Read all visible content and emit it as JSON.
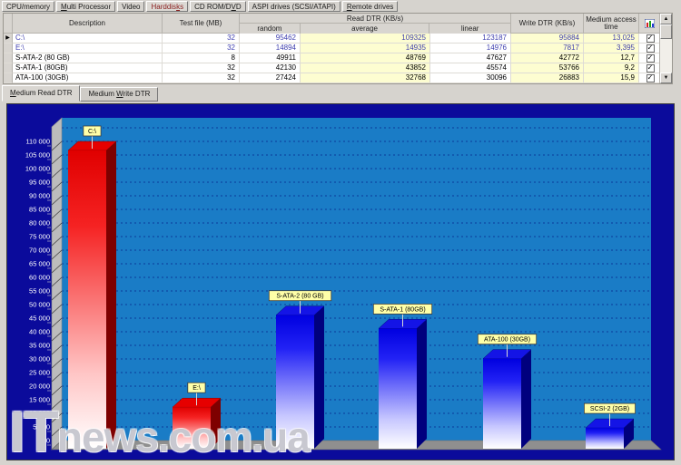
{
  "tabs": {
    "items": [
      {
        "pre": "CPU/memory",
        "u": "",
        "post": "",
        "selected": false
      },
      {
        "pre": "",
        "u": "M",
        "post": "ulti Processor",
        "selected": false
      },
      {
        "pre": "Video",
        "u": "",
        "post": "",
        "selected": false
      },
      {
        "pre": "Harddis",
        "u": "k",
        "post": "s",
        "selected": true
      },
      {
        "pre": "CD ROM/D",
        "u": "V",
        "post": "D",
        "selected": false
      },
      {
        "pre": "ASPI drives (SCSI/ATAPI)",
        "u": "",
        "post": "",
        "selected": false
      },
      {
        "pre": "",
        "u": "R",
        "post": "emote drives",
        "selected": false
      }
    ]
  },
  "table": {
    "headers": {
      "description": "Description",
      "test_file": "Test file (MB)",
      "read_group": "Read DTR (KB/s)",
      "random": "random",
      "average": "average",
      "linear": "linear",
      "write": "Write DTR (KB/s)",
      "access_line1": "Medium access",
      "access_line2": "time"
    },
    "rows": [
      {
        "description": "C:\\",
        "test_file": "32",
        "random": "95462",
        "average": "109325",
        "linear": "123187",
        "write": "95884",
        "access": "13,025",
        "checked": true,
        "style": "blue",
        "indicator": true
      },
      {
        "description": "E:\\",
        "test_file": "32",
        "random": "14894",
        "average": "14935",
        "linear": "14976",
        "write": "7817",
        "access": "3,395",
        "checked": true,
        "style": "blue",
        "indicator": false
      },
      {
        "description": "S-ATA-2 (80 GB)",
        "test_file": "8",
        "random": "49911",
        "average": "48769",
        "linear": "47627",
        "write": "42772",
        "access": "12,7",
        "checked": true,
        "style": "black",
        "indicator": false
      },
      {
        "description": "S-ATA-1 (80GB)",
        "test_file": "32",
        "random": "42130",
        "average": "43852",
        "linear": "45574",
        "write": "53766",
        "access": "9,2",
        "checked": true,
        "style": "black",
        "indicator": false
      },
      {
        "description": "ATA-100 (30GB)",
        "test_file": "32",
        "random": "27424",
        "average": "32768",
        "linear": "30096",
        "write": "26883",
        "access": "15,9",
        "checked": true,
        "style": "black",
        "indicator": false
      }
    ]
  },
  "icons": {
    "row_indicator": "▶",
    "scroll_up": "▲",
    "scroll_down": "▼",
    "check": "✓"
  },
  "chart_tabs": {
    "read": {
      "pre": "",
      "u": "M",
      "post": "edium Read DTR",
      "selected": true
    },
    "write": {
      "pre": "Medium ",
      "u": "W",
      "post": "rite DTR",
      "selected": false
    }
  },
  "chart_data": {
    "type": "bar",
    "title": "Medium Read DTR",
    "categories": [
      "C:\\",
      "E:\\",
      "S-ATA-2 (80 GB)",
      "S-ATA-1 (80GB)",
      "ATA-100 (30GB)",
      "SCSI-2 (2GB)"
    ],
    "values": [
      109325,
      14935,
      48769,
      43852,
      32768,
      7300
    ],
    "bar_colors": [
      "red",
      "red",
      "blue",
      "blue",
      "blue",
      "blue"
    ],
    "ylim": [
      0,
      118000
    ],
    "ytick_step": 5000,
    "ytick_max": 110000,
    "grid": "dotted-horizontal",
    "legend": "none",
    "colors": {
      "background": "#0b0b9b",
      "wall": "#1a7cc6",
      "grid": "#0a3a9a",
      "floor": "#8f8f8f",
      "side_wall": "#bcbcbc",
      "hatch": "#3a3a3a",
      "red_top": "#e60000",
      "red_side": "#7e0000",
      "blue_top": "#1414e6",
      "blue_side": "#00007e",
      "label_bg": "#ffffa8",
      "label_border": "#3c3c3c",
      "tick_text": "#ffffff"
    }
  },
  "watermark": {
    "part1": "IT",
    "part2": "news.com.ua"
  }
}
